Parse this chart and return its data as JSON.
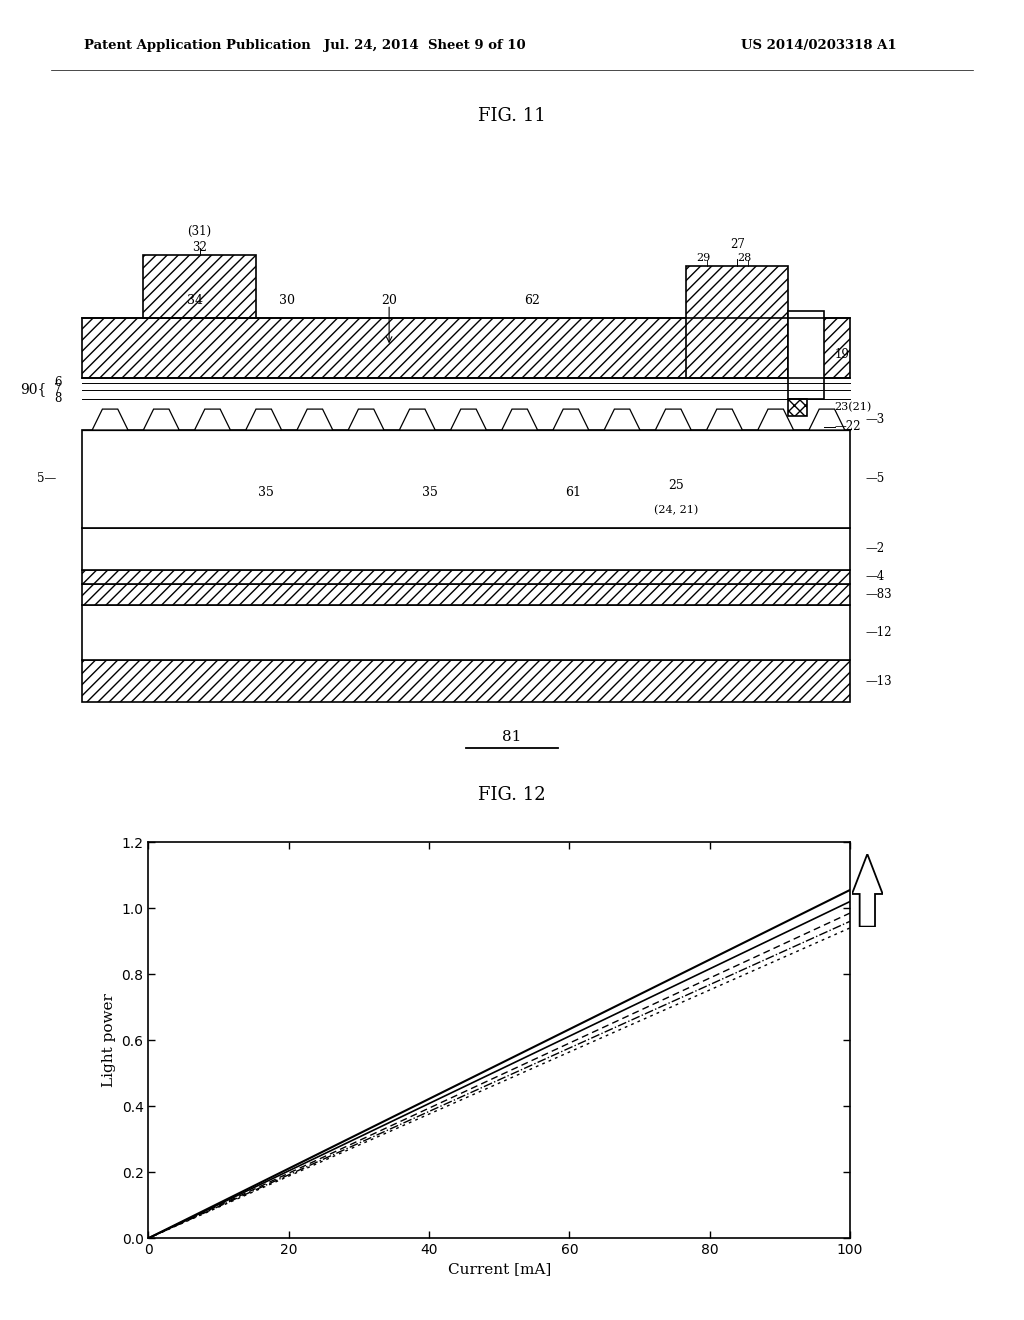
{
  "header_left": "Patent Application Publication",
  "header_mid": "Jul. 24, 2014  Sheet 9 of 10",
  "header_right": "US 2014/0203318 A1",
  "fig11_title": "FIG. 11",
  "fig12_title": "FIG. 12",
  "fig81_label": "81",
  "graph_xlabel": "Current [mA]",
  "graph_ylabel": "Light power",
  "graph_xlim": [
    0,
    100
  ],
  "graph_ylim": [
    0,
    1.2
  ],
  "graph_xticks": [
    0,
    20,
    40,
    60,
    80,
    100
  ],
  "graph_yticks": [
    0,
    0.2,
    0.4,
    0.6,
    0.8,
    1.0,
    1.2
  ],
  "bg_color": "#ffffff",
  "line_slopes": [
    0.01055,
    0.0102,
    0.00985,
    0.0096,
    0.0094
  ],
  "line_styles": [
    "-",
    "-",
    "--",
    "-.",
    "--"
  ],
  "line_widths": [
    1.5,
    1.2,
    1.0,
    1.0,
    1.0
  ],
  "line_dashes": [
    null,
    null,
    [
      5,
      3
    ],
    null,
    [
      2,
      3
    ]
  ]
}
